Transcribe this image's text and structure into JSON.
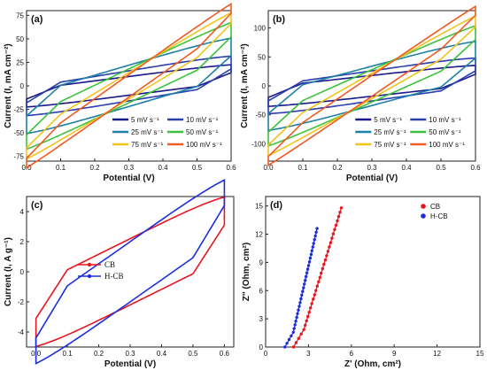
{
  "chart_data": [
    {
      "panel": "(a)",
      "type": "line",
      "xlabel": "Potential (V)",
      "ylabel": "Current (I, mA cm⁻²)",
      "xlim": [
        0,
        0.6
      ],
      "ylim": [
        -80,
        80
      ],
      "xticks": [
        0.0,
        0.1,
        0.2,
        0.3,
        0.4,
        0.5,
        0.6
      ],
      "yticks": [
        -75,
        -50,
        -25,
        0,
        25,
        50,
        75
      ],
      "legend_placement": "bottom-right",
      "series": [
        {
          "name": "5 mV s⁻¹",
          "color": "#1a1a8c",
          "amp": 10,
          "slope": 14
        },
        {
          "name": "10 mV s⁻¹",
          "color": "#2a3fb0",
          "amp": 16,
          "slope": 18
        },
        {
          "name": "25 mV s⁻¹",
          "color": "#1e7fa8",
          "amp": 22,
          "slope": 32
        },
        {
          "name": "50 mV s⁻¹",
          "color": "#3cc23c",
          "amp": 18,
          "slope": 52
        },
        {
          "name": "75 mV s⁻¹",
          "color": "#f0c419",
          "amp": 14,
          "slope": 66
        },
        {
          "name": "100 mV s⁻¹",
          "color": "#f05a23",
          "amp": 12,
          "slope": 77
        }
      ]
    },
    {
      "panel": "(b)",
      "type": "line",
      "xlabel": "Potential (V)",
      "ylabel": "Current (I, mA cm⁻²)",
      "xlim": [
        0,
        0.6
      ],
      "ylim": [
        -130,
        130
      ],
      "xticks": [
        0.0,
        0.1,
        0.2,
        0.3,
        0.4,
        0.5,
        0.6
      ],
      "yticks": [
        -100,
        -50,
        0,
        50,
        100
      ],
      "legend_placement": "bottom-right",
      "series": [
        {
          "name": "5 mV s⁻¹",
          "color": "#1a1a8c",
          "amp": 18,
          "slope": 20
        },
        {
          "name": "10 mV s⁻¹",
          "color": "#2a3fb0",
          "amp": 26,
          "slope": 26
        },
        {
          "name": "25 mV s⁻¹",
          "color": "#1e7fa8",
          "amp": 34,
          "slope": 48
        },
        {
          "name": "50 mV s⁻¹",
          "color": "#3cc23c",
          "amp": 28,
          "slope": 80
        },
        {
          "name": "75 mV s⁻¹",
          "color": "#f0c419",
          "amp": 22,
          "slope": 102
        },
        {
          "name": "100 mV s⁻¹",
          "color": "#f05a23",
          "amp": 18,
          "slope": 122
        }
      ]
    },
    {
      "panel": "(c)",
      "type": "line",
      "xlabel": "Potential (V)",
      "ylabel": "Current (I, A g⁻¹)",
      "xlim": [
        -0.03,
        0.63
      ],
      "ylim": [
        -5,
        5
      ],
      "xticks": [
        0.0,
        0.1,
        0.2,
        0.3,
        0.4,
        0.5,
        0.6
      ],
      "yticks": [
        -4,
        -2,
        0,
        2,
        4
      ],
      "legend_placement": "center-left",
      "series": [
        {
          "name": "CB",
          "color": "#e8141e",
          "amp": 2.2,
          "slope": 3.1
        },
        {
          "name": "H-CB",
          "color": "#1a2ee0",
          "amp": 2.0,
          "slope": 4.4
        }
      ]
    },
    {
      "panel": "(d)",
      "type": "scatter",
      "xlabel": "Z' (Ohm, cm²)",
      "ylabel": "Z'' (Ohm, cm²)",
      "xlim": [
        0,
        15
      ],
      "ylim": [
        0,
        16
      ],
      "xticks": [
        0,
        3,
        6,
        9,
        12,
        15
      ],
      "yticks": [
        0,
        3,
        6,
        9,
        12,
        15
      ],
      "legend_placement": "top-left",
      "series": [
        {
          "name": "CB",
          "color": "#e8141e",
          "x0": 2.3,
          "x1": 5.3,
          "y1": 14.8
        },
        {
          "name": "H-CB",
          "color": "#1a2ee0",
          "x0": 1.7,
          "x1": 3.6,
          "y1": 12.6
        }
      ]
    }
  ]
}
